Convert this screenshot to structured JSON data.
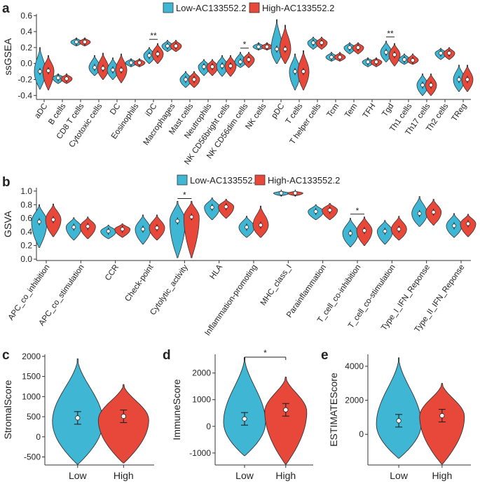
{
  "colors": {
    "low": "#3fb6d4",
    "high": "#e8483a",
    "axis": "#333333",
    "outline": "#333333"
  },
  "legend": {
    "low_label": "Low-AC133552.2",
    "high_label": "High-AC133552.2"
  },
  "chart_data": [
    {
      "panel_label": "a",
      "type": "violin",
      "ylabel": "ssGSEA",
      "ylim": [
        -0.45,
        0.62
      ],
      "yticks": [
        "0.6",
        "0.4",
        "0.2",
        "0.0",
        "-0.2",
        "-0.4"
      ],
      "ytick_values": [
        0.6,
        0.4,
        0.2,
        0.0,
        -0.2,
        -0.4
      ],
      "categories": [
        "aDC",
        "B cells",
        "CD8 T cells",
        "Cytotoxic cells",
        "DC",
        "Eosinophils",
        "iDC",
        "Macrophages",
        "Mast cells",
        "Neutrophils",
        "NK CD56bright cells",
        "NK CD56dim cells",
        "NK cells",
        "pDC",
        "T cells",
        "T helper cells",
        "Tcm",
        "Tem",
        "TFH",
        "Tgd",
        "Th1 cells",
        "Th17 cells",
        "Th2 cells",
        "TReg"
      ],
      "series": [
        {
          "name": "Low-AC133552.2",
          "medians": [
            -0.1,
            -0.18,
            0.27,
            -0.05,
            -0.08,
            0.01,
            0.1,
            0.22,
            -0.2,
            -0.04,
            -0.03,
            0.02,
            0.21,
            0.18,
            -0.1,
            0.26,
            0.08,
            0.2,
            0.02,
            0.14,
            0.05,
            -0.27,
            0.13,
            -0.2
          ],
          "mins": [
            -0.32,
            -0.25,
            0.22,
            -0.15,
            -0.2,
            -0.04,
            0.0,
            0.15,
            -0.3,
            -0.15,
            -0.16,
            -0.05,
            0.17,
            0.0,
            -0.33,
            0.18,
            0.03,
            0.12,
            -0.04,
            0.02,
            -0.01,
            -0.4,
            0.05,
            -0.35
          ],
          "maxs": [
            0.2,
            -0.13,
            0.32,
            0.1,
            0.07,
            0.06,
            0.2,
            0.29,
            -0.1,
            0.05,
            0.1,
            0.14,
            0.26,
            0.55,
            0.12,
            0.33,
            0.14,
            0.26,
            0.07,
            0.28,
            0.12,
            -0.13,
            0.19,
            -0.02
          ]
        },
        {
          "name": "High-AC133552.2",
          "medians": [
            -0.09,
            -0.19,
            0.27,
            -0.06,
            -0.08,
            0.01,
            0.12,
            0.22,
            -0.2,
            -0.04,
            -0.03,
            0.05,
            0.21,
            0.18,
            -0.1,
            0.26,
            0.08,
            0.2,
            0.02,
            0.11,
            0.04,
            -0.27,
            0.13,
            -0.2
          ],
          "mins": [
            -0.33,
            -0.25,
            0.22,
            -0.2,
            -0.24,
            -0.04,
            0.0,
            0.15,
            -0.3,
            -0.15,
            -0.16,
            -0.05,
            0.17,
            0.0,
            -0.33,
            0.18,
            0.03,
            0.12,
            -0.04,
            -0.03,
            -0.01,
            -0.4,
            0.05,
            -0.35
          ],
          "maxs": [
            0.1,
            -0.13,
            0.32,
            0.13,
            0.12,
            0.06,
            0.25,
            0.29,
            -0.1,
            0.05,
            0.1,
            0.14,
            0.26,
            0.48,
            0.16,
            0.33,
            0.14,
            0.26,
            0.07,
            0.25,
            0.12,
            -0.13,
            0.2,
            -0.02
          ]
        }
      ],
      "significance": [
        {
          "category": "iDC",
          "label": "**"
        },
        {
          "category": "NK CD56dim cells",
          "label": "*"
        },
        {
          "category": "Tgd",
          "label": "**"
        }
      ]
    },
    {
      "panel_label": "b",
      "type": "violin",
      "ylabel": "GSVA",
      "ylim": [
        -0.02,
        1.05
      ],
      "yticks": [
        "1.0",
        "0.8",
        "0.6",
        "0.4",
        "0.2",
        "0.0"
      ],
      "ytick_values": [
        1.0,
        0.8,
        0.6,
        0.4,
        0.2,
        0.0
      ],
      "categories": [
        "APC_co_inhibition",
        "APC_co_stimulation",
        "CCR",
        "Check-point",
        "Cytolytic_activity",
        "HLA",
        "Inflammation-promoting",
        "MHC_class_I",
        "Parainflammation",
        "T_cell_co-inhibition",
        "T_cell_co-stimulation",
        "Type_I_IFN_Reponse",
        "Type_II_IFN_Reponse"
      ],
      "series": [
        {
          "name": "Low-AC133552.2",
          "medians": [
            0.55,
            0.47,
            0.41,
            0.44,
            0.56,
            0.76,
            0.47,
            0.97,
            0.7,
            0.38,
            0.41,
            0.67,
            0.49
          ],
          "mins": [
            0.17,
            0.28,
            0.3,
            0.22,
            0.02,
            0.58,
            0.32,
            0.93,
            0.58,
            0.18,
            0.22,
            0.48,
            0.32
          ],
          "maxs": [
            0.8,
            0.61,
            0.5,
            0.65,
            0.85,
            0.9,
            0.63,
            1.0,
            0.8,
            0.6,
            0.57,
            0.92,
            0.67
          ]
        },
        {
          "name": "High-AC133552.2",
          "medians": [
            0.58,
            0.48,
            0.44,
            0.46,
            0.62,
            0.77,
            0.5,
            0.97,
            0.72,
            0.42,
            0.44,
            0.69,
            0.52
          ],
          "mins": [
            0.33,
            0.3,
            0.32,
            0.28,
            0.02,
            0.6,
            0.32,
            0.93,
            0.58,
            0.2,
            0.28,
            0.5,
            0.33
          ],
          "maxs": [
            0.81,
            0.62,
            0.52,
            0.65,
            0.85,
            0.88,
            0.78,
            1.0,
            0.82,
            0.62,
            0.63,
            0.88,
            0.66
          ]
        }
      ],
      "significance": [
        {
          "category": "Cytolytic_activity",
          "label": "*"
        },
        {
          "category": "T_cell_co-inhibition",
          "label": "*"
        }
      ]
    },
    {
      "panel_label": "c",
      "type": "violin",
      "ylabel": "StromalScore",
      "ylim": [
        -700,
        2050
      ],
      "yticks": [
        "2000",
        "1500",
        "1000",
        "500",
        "0",
        "-500"
      ],
      "ytick_values": [
        2000,
        1500,
        1000,
        500,
        0,
        -500
      ],
      "categories": [
        "Low",
        "High"
      ],
      "medians": [
        470,
        510
      ],
      "mins": [
        -680,
        -650
      ],
      "maxs": [
        1940,
        1300
      ],
      "modes": [
        380,
        420
      ],
      "significance": []
    },
    {
      "panel_label": "d",
      "type": "violin",
      "ylabel": "ImmuneScore",
      "ylim": [
        -1450,
        2700
      ],
      "yticks": [
        "2000",
        "1000",
        "0",
        "-1000"
      ],
      "ytick_values": [
        2000,
        1000,
        0,
        -1000
      ],
      "categories": [
        "Low",
        "High"
      ],
      "medians": [
        280,
        620
      ],
      "mins": [
        -1100,
        -1420
      ],
      "maxs": [
        2580,
        1850
      ],
      "modes": [
        150,
        550
      ],
      "significance": [
        {
          "label": "*"
        }
      ]
    },
    {
      "panel_label": "e",
      "type": "violin",
      "ylabel": "ESTIMATEScore",
      "ylim": [
        -1800,
        4700
      ],
      "yticks": [
        "4000",
        "2000",
        "0"
      ],
      "ytick_values": [
        4000,
        2000,
        0
      ],
      "categories": [
        "Low",
        "High"
      ],
      "medians": [
        800,
        1100
      ],
      "mins": [
        -1400,
        -1750
      ],
      "maxs": [
        4500,
        3000
      ],
      "modes": [
        600,
        1050
      ],
      "significance": []
    }
  ]
}
